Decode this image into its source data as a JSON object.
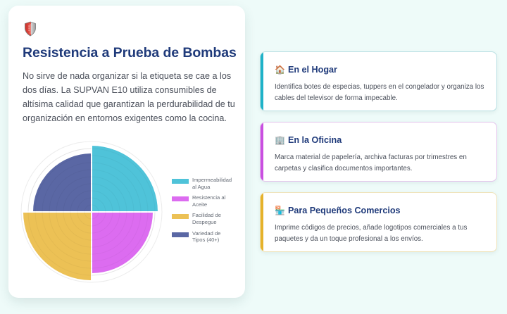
{
  "left_card": {
    "icon": "shield-icon",
    "title": "Resistencia a Prueba de Bombas",
    "description": "No sirve de nada organizar si la etiqueta se cae a los dos días. La SUPVAN E10 utiliza consumibles de altísima calidad que garantizan la perdurabilidad de tu organización en entornos exigentes como la cocina."
  },
  "chart_data": {
    "type": "polarArea",
    "title": "",
    "categories": [
      "Impermeabilidad al Agua",
      "Resistencia al Aceite",
      "Facilidad de Despegue",
      "Variedad de Tipos (40+)"
    ],
    "values": [
      95,
      88,
      98,
      84
    ],
    "colors": [
      "#4fc3d9",
      "#dc6cf0",
      "#ecc155",
      "#5a67a4"
    ],
    "rlim": [
      0,
      100
    ],
    "grid": true,
    "legend_position": "right",
    "legend": [
      {
        "line1": "Impermeabilidad",
        "line2": "al Agua",
        "color": "#4fc3d9"
      },
      {
        "line1": "Resistencia al",
        "line2": "Aceite",
        "color": "#dc6cf0"
      },
      {
        "line1": "Facilidad de",
        "line2": "Despegue",
        "color": "#ecc155"
      },
      {
        "line1": "Variedad de",
        "line2": "Tipos (40+)",
        "color": "#5a67a4"
      }
    ]
  },
  "use_cards": [
    {
      "icon": "house-icon",
      "emoji": "🏠",
      "title": "En el Hogar",
      "body": "Identifica botes de especias, tuppers en el congelador y organiza los cables del televisor de forma impecable.",
      "accent": "#1fb2c8",
      "border": "#b9e0e3"
    },
    {
      "icon": "office-building-icon",
      "emoji": "🏢",
      "title": "En la Oficina",
      "body": "Marca material de papelería, archiva facturas por trimestres en carpetas y clasifica documentos importantes.",
      "accent": "#c94fe0",
      "border": "#e3c4ec"
    },
    {
      "icon": "store-icon",
      "emoji": "🏪",
      "title": "Para Pequeños Comercios",
      "body": "Imprime códigos de precios, añade logotipos comerciales a tus paquetes y da un toque profesional a los envíos.",
      "accent": "#e5b22b",
      "border": "#efe2b8"
    }
  ]
}
